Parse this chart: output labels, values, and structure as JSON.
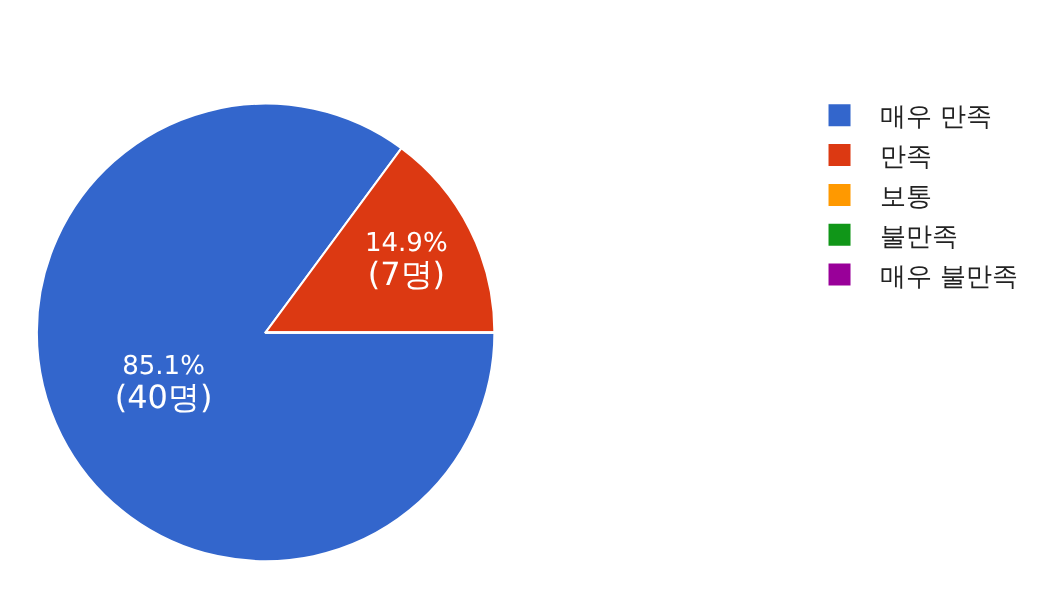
{
  "chart_data": {
    "type": "pie",
    "categories": [
      "매우 만족",
      "만족",
      "보통",
      "불만족",
      "매우 불만족"
    ],
    "values": [
      40,
      7,
      0,
      0,
      0
    ],
    "colors": [
      "#3366cc",
      "#dc3912",
      "#ff9900",
      "#109618",
      "#990099"
    ],
    "value_labels": [
      "85.1%\n(40명)",
      "14.9%\n(7명)",
      null,
      null,
      null
    ],
    "legend": "right"
  }
}
